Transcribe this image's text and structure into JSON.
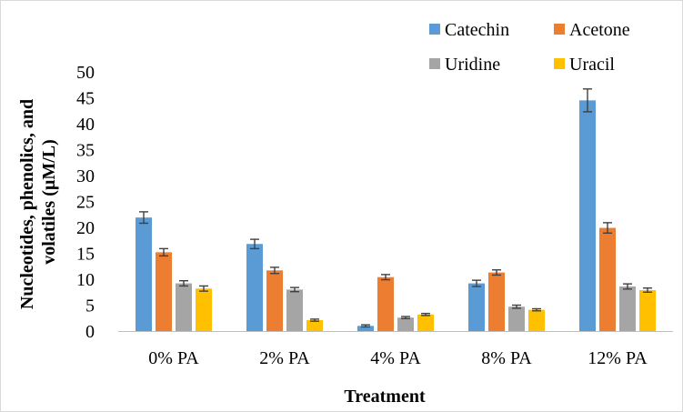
{
  "chart_data": {
    "type": "bar",
    "title": "",
    "xlabel": "Treatment",
    "ylabel": "Nucleotides, phenolics, and volatiles (µM/L)",
    "ylabel_lines": [
      "Nucleotides, phenolics, and",
      "volatiles (µM/L)"
    ],
    "ylim": [
      0,
      50
    ],
    "yticks": [
      0,
      5,
      10,
      15,
      20,
      25,
      30,
      35,
      40,
      45,
      50
    ],
    "grid": false,
    "legend_position": "top-right",
    "categories": [
      "0% PA",
      "2% PA",
      "4% PA",
      "8% PA",
      "12% PA"
    ],
    "series": [
      {
        "name": "Catechin",
        "color": "#5b9bd5",
        "values": [
          21.9,
          16.8,
          1.0,
          9.2,
          44.5
        ],
        "errors": [
          1.1,
          0.9,
          0.2,
          0.6,
          2.2
        ]
      },
      {
        "name": "Acetone",
        "color": "#ed7d31",
        "values": [
          15.2,
          11.7,
          10.4,
          11.3,
          19.9
        ],
        "errors": [
          0.7,
          0.6,
          0.5,
          0.5,
          1.0
        ]
      },
      {
        "name": "Uridine",
        "color": "#a5a5a5",
        "values": [
          9.2,
          8.0,
          2.6,
          4.7,
          8.6
        ],
        "errors": [
          0.5,
          0.4,
          0.2,
          0.3,
          0.5
        ]
      },
      {
        "name": "Uracil",
        "color": "#ffc000",
        "values": [
          8.2,
          2.1,
          3.2,
          4.1,
          7.9
        ],
        "errors": [
          0.5,
          0.2,
          0.2,
          0.2,
          0.4
        ]
      }
    ]
  }
}
